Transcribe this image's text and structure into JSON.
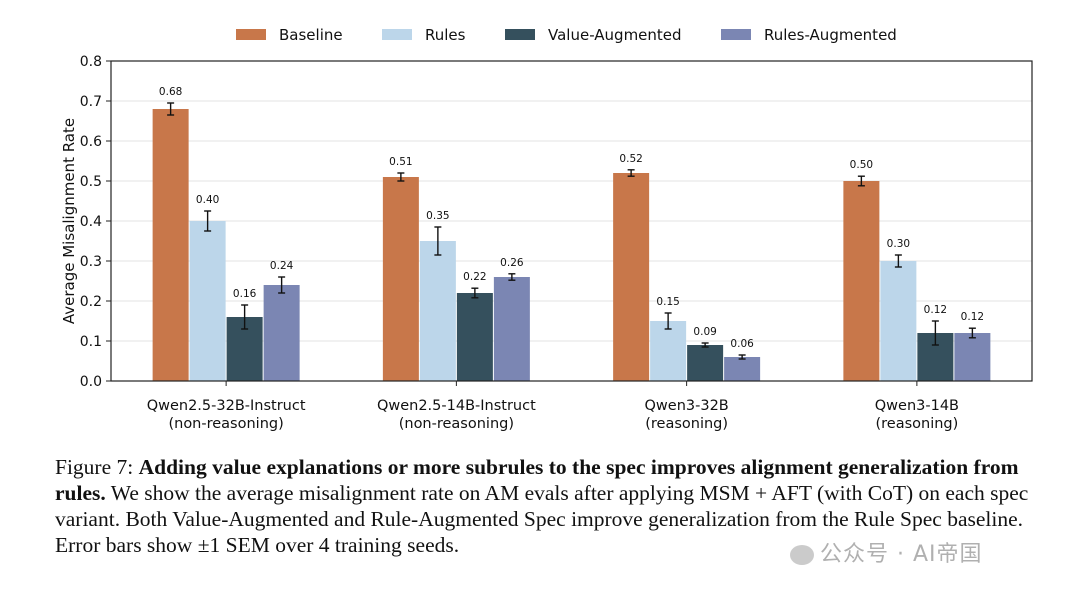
{
  "chart_data": {
    "type": "bar",
    "ylabel": "Average Misalignment Rate",
    "ylim": [
      0,
      0.8
    ],
    "yticks": [
      "0.0",
      "0.1",
      "0.2",
      "0.3",
      "0.4",
      "0.5",
      "0.6",
      "0.7",
      "0.8"
    ],
    "grid": true,
    "legend_position": "top-center",
    "categories": [
      [
        "Qwen2.5-32B-Instruct",
        "(non-reasoning)"
      ],
      [
        "Qwen2.5-14B-Instruct",
        "(non-reasoning)"
      ],
      [
        "Qwen3-32B",
        "(reasoning)"
      ],
      [
        "Qwen3-14B",
        "(reasoning)"
      ]
    ],
    "series": [
      {
        "name": "Baseline",
        "color": "#c8774a",
        "values": [
          0.68,
          0.51,
          0.52,
          0.5
        ],
        "labels": [
          "0.68",
          "0.51",
          "0.52",
          "0.50"
        ],
        "errors": [
          0.015,
          0.01,
          0.008,
          0.012
        ]
      },
      {
        "name": "Rules",
        "color": "#bcd6ea",
        "values": [
          0.4,
          0.35,
          0.15,
          0.3
        ],
        "labels": [
          "0.40",
          "0.35",
          "0.15",
          "0.30"
        ],
        "errors": [
          0.025,
          0.035,
          0.02,
          0.015
        ]
      },
      {
        "name": "Value-Augmented",
        "color": "#35505d",
        "values": [
          0.16,
          0.22,
          0.09,
          0.12
        ],
        "labels": [
          "0.16",
          "0.22",
          "0.09",
          "0.12"
        ],
        "errors": [
          0.03,
          0.012,
          0.005,
          0.03
        ]
      },
      {
        "name": "Rules-Augmented",
        "color": "#7b86b3",
        "values": [
          0.24,
          0.26,
          0.06,
          0.12
        ],
        "labels": [
          "0.24",
          "0.26",
          "0.06",
          "0.12"
        ],
        "errors": [
          0.02,
          0.008,
          0.005,
          0.012
        ]
      }
    ]
  },
  "caption": {
    "prefix": "Figure 7: ",
    "bold": "Adding value explanations or more subrules to the spec improves alignment generalization from rules.",
    "body": " We show the average misalignment rate on AM evals after applying MSM + AFT (with CoT) on each spec variant. Both Value-Augmented and Rule-Augmented Spec improve generalization from the Rule Spec baseline. Error bars show ±1 SEM over 4 training seeds."
  },
  "watermark": {
    "text": "公众号 · AI帝国"
  }
}
